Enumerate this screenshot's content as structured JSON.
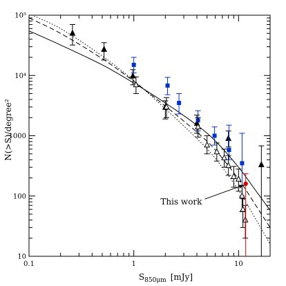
{
  "chart_data": {
    "type": "scatter",
    "xscale": "log",
    "yscale": "log",
    "xlim": [
      0.1,
      20
    ],
    "ylim": [
      10,
      100000
    ],
    "grid": false,
    "xlabel_main": "S",
    "xlabel_sub": "850μm",
    "xlabel_unit": "[mJy]",
    "ylabel": "N(>S)/degree²",
    "x_ticks": [
      {
        "value": 0.1,
        "label": "0.1"
      },
      {
        "value": 1,
        "label": "1"
      },
      {
        "value": 10,
        "label": "10"
      }
    ],
    "y_ticks": [
      {
        "value": 10,
        "label": "10"
      },
      {
        "value": 100,
        "label": "100"
      },
      {
        "value": 1000,
        "label": "1000"
      },
      {
        "value": 10000,
        "label": "10⁴"
      },
      {
        "value": 100000,
        "label": "10⁵"
      }
    ],
    "annotation": {
      "text": "This work",
      "x": 1.8,
      "y": 80,
      "arrow_to": [
        11.5,
        160
      ]
    },
    "series": [
      {
        "marker": "filled-triangle",
        "color": "#000000",
        "points": [
          {
            "x": 0.26,
            "y": 50000,
            "lo": 32000,
            "hi": 70000
          },
          {
            "x": 0.52,
            "y": 27000,
            "lo": 18000,
            "hi": 35000
          },
          {
            "x": 0.98,
            "y": 9800,
            "lo": 7000,
            "hi": 12500
          },
          {
            "x": 2.0,
            "y": 2950,
            "lo": 1900,
            "hi": 3800
          },
          {
            "x": 4.0,
            "y": 1600,
            "lo": 1100,
            "hi": 2200
          },
          {
            "x": 8.0,
            "y": 900,
            "lo": 650,
            "hi": 1200
          },
          {
            "x": 16.5,
            "y": 330,
            "lo": 10,
            "hi": 680
          }
        ]
      },
      {
        "marker": "filled-square",
        "color": "#0033cc",
        "points": [
          {
            "x": 1.0,
            "y": 15000,
            "lo": 11000,
            "hi": 20000
          },
          {
            "x": 2.1,
            "y": 6800,
            "lo": 4800,
            "hi": 9300
          },
          {
            "x": 2.7,
            "y": 3500,
            "lo": 2300,
            "hi": 5000
          },
          {
            "x": 4.1,
            "y": 1800,
            "lo": 1200,
            "hi": 2600
          },
          {
            "x": 5.9,
            "y": 1000,
            "lo": 700,
            "hi": 1400
          },
          {
            "x": 8.1,
            "y": 580,
            "lo": 400,
            "hi": 1500
          },
          {
            "x": 10.8,
            "y": 350,
            "lo": 100,
            "hi": 1100
          }
        ]
      },
      {
        "marker": "open-triangle",
        "color": "#000000",
        "points": [
          {
            "x": 1.05,
            "y": 7000,
            "lo": 5000,
            "hi": 9500
          },
          {
            "x": 2.05,
            "y": 3000,
            "lo": 2000,
            "hi": 4300
          },
          {
            "x": 4.1,
            "y": 1400,
            "lo": 950,
            "hi": 2000
          },
          {
            "x": 5.0,
            "y": 700,
            "lo": 500,
            "hi": 1000
          },
          {
            "x": 6.2,
            "y": 540,
            "lo": 380,
            "hi": 760
          },
          {
            "x": 7.3,
            "y": 430,
            "lo": 300,
            "hi": 600
          },
          {
            "x": 8.0,
            "y": 320,
            "lo": 220,
            "hi": 470
          },
          {
            "x": 9.0,
            "y": 210,
            "lo": 140,
            "hi": 310
          },
          {
            "x": 10.0,
            "y": 190,
            "lo": 120,
            "hi": 280
          },
          {
            "x": 10.8,
            "y": 100,
            "lo": 55,
            "hi": 150
          },
          {
            "x": 11.0,
            "y": 60,
            "lo": 30,
            "hi": 90
          },
          {
            "x": 11.6,
            "y": 40,
            "lo": 20,
            "hi": 70
          }
        ]
      },
      {
        "marker": "filled-circle",
        "color": "#dd0000",
        "points": [
          {
            "x": 11.7,
            "y": 160,
            "lo": 10,
            "hi": 235
          }
        ]
      }
    ],
    "curves": [
      {
        "style": "solid",
        "points": [
          [
            0.1,
            55000
          ],
          [
            0.2,
            32000
          ],
          [
            0.5,
            15000
          ],
          [
            1,
            7500
          ],
          [
            2,
            3500
          ],
          [
            4,
            1500
          ],
          [
            6,
            820
          ],
          [
            10,
            300
          ],
          [
            15,
            115
          ],
          [
            20,
            58
          ]
        ]
      },
      {
        "style": "dashed",
        "points": [
          [
            0.1,
            90000
          ],
          [
            0.2,
            50000
          ],
          [
            0.5,
            19000
          ],
          [
            1,
            8000
          ],
          [
            2,
            3100
          ],
          [
            4,
            1150
          ],
          [
            6,
            580
          ],
          [
            10,
            190
          ],
          [
            15,
            65
          ],
          [
            20,
            30
          ]
        ]
      },
      {
        "style": "dotted",
        "points": [
          [
            0.1,
            105000
          ],
          [
            0.2,
            60000
          ],
          [
            0.5,
            21000
          ],
          [
            1,
            8200
          ],
          [
            2,
            2800
          ],
          [
            4,
            900
          ],
          [
            6,
            420
          ],
          [
            10,
            125
          ],
          [
            15,
            38
          ],
          [
            20,
            16
          ]
        ]
      }
    ]
  }
}
